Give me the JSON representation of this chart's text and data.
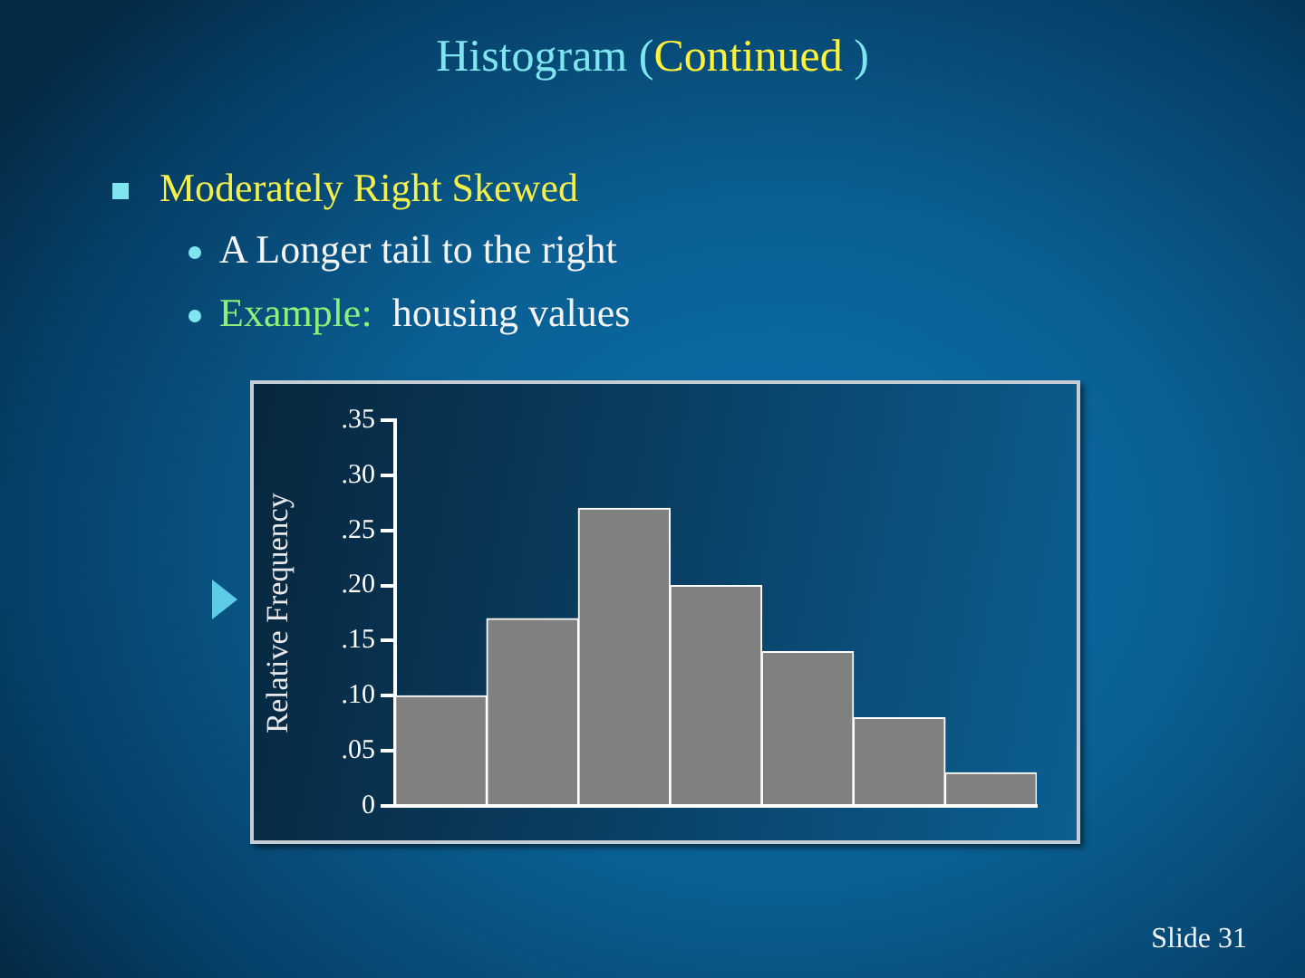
{
  "chart_data": {
    "type": "bar",
    "title": "Histogram (Continued )",
    "ylabel": "Relative Frequency",
    "categories": [
      null,
      null,
      null,
      null,
      null,
      null,
      null
    ],
    "values": [
      0.1,
      0.17,
      0.27,
      0.2,
      0.14,
      0.08,
      0.03
    ],
    "color": "#808080",
    "ylim": [
      0,
      0.35
    ],
    "yticks": [
      0,
      {
        "value": 0.05,
        "label": ".05"
      },
      {
        "value": 0.1,
        "label": ".10"
      },
      {
        "value": 0.15,
        "label": ".15"
      },
      {
        "value": 0.2,
        "label": ".20"
      },
      {
        "value": 0.25,
        "label": ".25"
      },
      {
        "value": 0.3,
        "label": ".30"
      },
      {
        "value": 0.35,
        "label": ".35"
      }
    ],
    "grid": false,
    "legend": false,
    "annotations": [
      "Moderately Right Skewed",
      "A Longer tail to the right",
      "Example:  housing values",
      "Slide 31"
    ]
  }
}
